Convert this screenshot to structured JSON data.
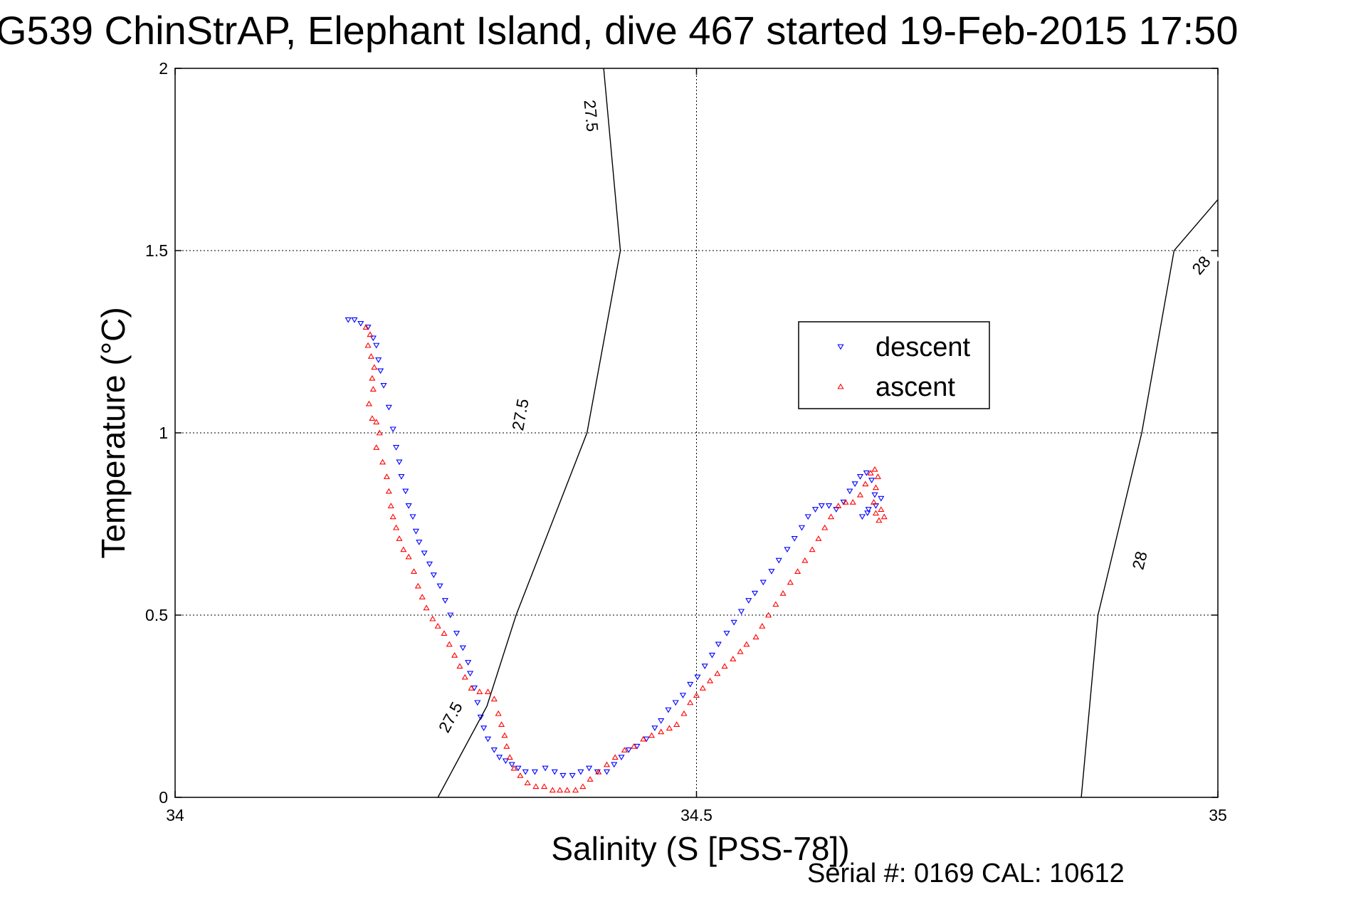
{
  "title": "G539 ChinStrAP, Elephant Island, dive 467 started 19-Feb-2015 17:50",
  "footer": "Serial #: 0169 CAL: 10612",
  "legend": {
    "entries": [
      {
        "name": "descent",
        "color": "#0000ff",
        "marker": "triangle-down"
      },
      {
        "name": "ascent",
        "color": "#ff0000",
        "marker": "triangle-up"
      }
    ],
    "position": "upper-right interior"
  },
  "chart_data": {
    "type": "scatter",
    "title": "G539 ChinStrAP, Elephant Island, dive 467 started 19-Feb-2015 17:50",
    "xlabel": "Salinity (S [PSS-78])",
    "ylabel": "Temperature (°C)",
    "xlim": [
      34,
      35
    ],
    "ylim": [
      0,
      2
    ],
    "xticks": [
      34,
      34.5,
      35
    ],
    "xtick_labels": [
      "34",
      "34.5",
      "35"
    ],
    "yticks": [
      0,
      0.5,
      1,
      1.5,
      2
    ],
    "ytick_labels": [
      "0",
      "0.5",
      "1",
      "1.5",
      "2"
    ],
    "grid": true,
    "legend_position": "upper-right interior",
    "density_contours": [
      {
        "value": "27.5",
        "points": [
          [
            34.252,
            0.0
          ],
          [
            34.299,
            0.25
          ],
          [
            34.327,
            0.5
          ],
          [
            34.395,
            1.0
          ],
          [
            34.427,
            1.5
          ],
          [
            34.411,
            2.0
          ]
        ],
        "labels": [
          [
            34.264,
            0.22
          ],
          [
            34.331,
            1.05
          ],
          [
            34.399,
            1.87
          ]
        ]
      },
      {
        "value": "28",
        "points": [
          [
            34.869,
            0.0
          ],
          [
            34.885,
            0.5
          ],
          [
            34.927,
            1.0
          ],
          [
            34.958,
            1.5
          ],
          [
            35.0,
            1.64
          ]
        ],
        "labels": [
          [
            34.925,
            0.65
          ],
          [
            34.984,
            1.46
          ]
        ]
      }
    ],
    "series": [
      {
        "name": "descent",
        "color": "#0000ff",
        "marker": "triangle-down",
        "points": [
          [
            34.166,
            1.31
          ],
          [
            34.172,
            1.31
          ],
          [
            34.178,
            1.3
          ],
          [
            34.185,
            1.29
          ],
          [
            34.19,
            1.26
          ],
          [
            34.193,
            1.24
          ],
          [
            34.195,
            1.2
          ],
          [
            34.197,
            1.17
          ],
          [
            34.2,
            1.13
          ],
          [
            34.205,
            1.07
          ],
          [
            34.209,
            1.01
          ],
          [
            34.212,
            0.96
          ],
          [
            34.215,
            0.92
          ],
          [
            34.217,
            0.88
          ],
          [
            34.221,
            0.84
          ],
          [
            34.224,
            0.8
          ],
          [
            34.228,
            0.77
          ],
          [
            34.231,
            0.73
          ],
          [
            34.234,
            0.7
          ],
          [
            34.239,
            0.67
          ],
          [
            34.244,
            0.64
          ],
          [
            34.248,
            0.61
          ],
          [
            34.254,
            0.58
          ],
          [
            34.259,
            0.54
          ],
          [
            34.264,
            0.5
          ],
          [
            34.27,
            0.45
          ],
          [
            34.276,
            0.41
          ],
          [
            34.281,
            0.37
          ],
          [
            34.283,
            0.34
          ],
          [
            34.287,
            0.3
          ],
          [
            34.29,
            0.26
          ],
          [
            34.293,
            0.22
          ],
          [
            34.296,
            0.19
          ],
          [
            34.3,
            0.16
          ],
          [
            34.306,
            0.13
          ],
          [
            34.311,
            0.11
          ],
          [
            34.317,
            0.1
          ],
          [
            34.323,
            0.09
          ],
          [
            34.329,
            0.08
          ],
          [
            34.336,
            0.07
          ],
          [
            34.345,
            0.07
          ],
          [
            34.355,
            0.08
          ],
          [
            34.364,
            0.07
          ],
          [
            34.372,
            0.06
          ],
          [
            34.381,
            0.06
          ],
          [
            34.389,
            0.07
          ],
          [
            34.397,
            0.08
          ],
          [
            34.405,
            0.07
          ],
          [
            34.414,
            0.07
          ],
          [
            34.421,
            0.09
          ],
          [
            34.428,
            0.11
          ],
          [
            34.435,
            0.13
          ],
          [
            34.443,
            0.14
          ],
          [
            34.452,
            0.16
          ],
          [
            34.46,
            0.19
          ],
          [
            34.466,
            0.21
          ],
          [
            34.473,
            0.24
          ],
          [
            34.48,
            0.26
          ],
          [
            34.487,
            0.28
          ],
          [
            34.494,
            0.31
          ],
          [
            34.501,
            0.33
          ],
          [
            34.508,
            0.36
          ],
          [
            34.515,
            0.39
          ],
          [
            34.521,
            0.42
          ],
          [
            34.529,
            0.45
          ],
          [
            34.536,
            0.48
          ],
          [
            34.543,
            0.51
          ],
          [
            34.55,
            0.54
          ],
          [
            34.556,
            0.56
          ],
          [
            34.564,
            0.59
          ],
          [
            34.572,
            0.62
          ],
          [
            34.579,
            0.65
          ],
          [
            34.587,
            0.68
          ],
          [
            34.594,
            0.71
          ],
          [
            34.601,
            0.74
          ],
          [
            34.607,
            0.77
          ],
          [
            34.614,
            0.79
          ],
          [
            34.62,
            0.8
          ],
          [
            34.627,
            0.8
          ],
          [
            34.634,
            0.79
          ],
          [
            34.641,
            0.81
          ],
          [
            34.647,
            0.84
          ],
          [
            34.652,
            0.86
          ],
          [
            34.657,
            0.88
          ],
          [
            34.663,
            0.89
          ],
          [
            34.668,
            0.87
          ],
          [
            34.671,
            0.83
          ],
          [
            34.665,
            0.79
          ],
          [
            34.659,
            0.77
          ],
          [
            34.664,
            0.78
          ],
          [
            34.672,
            0.8
          ],
          [
            34.677,
            0.82
          ]
        ]
      },
      {
        "name": "ascent",
        "color": "#ff0000",
        "marker": "triangle-up",
        "points": [
          [
            34.183,
            1.29
          ],
          [
            34.187,
            1.27
          ],
          [
            34.185,
            1.24
          ],
          [
            34.188,
            1.21
          ],
          [
            34.191,
            1.18
          ],
          [
            34.189,
            1.15
          ],
          [
            34.19,
            1.12
          ],
          [
            34.186,
            1.08
          ],
          [
            34.189,
            1.04
          ],
          [
            34.193,
            1.03
          ],
          [
            34.196,
            1.0
          ],
          [
            34.193,
            0.96
          ],
          [
            34.199,
            0.92
          ],
          [
            34.203,
            0.88
          ],
          [
            34.205,
            0.84
          ],
          [
            34.207,
            0.8
          ],
          [
            34.209,
            0.77
          ],
          [
            34.212,
            0.74
          ],
          [
            34.215,
            0.71
          ],
          [
            34.219,
            0.68
          ],
          [
            34.224,
            0.66
          ],
          [
            34.229,
            0.62
          ],
          [
            34.233,
            0.58
          ],
          [
            34.237,
            0.55
          ],
          [
            34.241,
            0.52
          ],
          [
            34.247,
            0.49
          ],
          [
            34.252,
            0.47
          ],
          [
            34.258,
            0.45
          ],
          [
            34.263,
            0.42
          ],
          [
            34.268,
            0.39
          ],
          [
            34.273,
            0.36
          ],
          [
            34.278,
            0.33
          ],
          [
            34.284,
            0.3
          ],
          [
            34.292,
            0.29
          ],
          [
            34.3,
            0.29
          ],
          [
            34.306,
            0.27
          ],
          [
            34.31,
            0.23
          ],
          [
            34.313,
            0.2
          ],
          [
            34.316,
            0.17
          ],
          [
            34.318,
            0.14
          ],
          [
            34.321,
            0.11
          ],
          [
            34.325,
            0.08
          ],
          [
            34.331,
            0.06
          ],
          [
            34.338,
            0.04
          ],
          [
            34.346,
            0.03
          ],
          [
            34.354,
            0.03
          ],
          [
            34.362,
            0.02
          ],
          [
            34.369,
            0.02
          ],
          [
            34.376,
            0.02
          ],
          [
            34.384,
            0.02
          ],
          [
            34.391,
            0.03
          ],
          [
            34.398,
            0.05
          ],
          [
            34.406,
            0.07
          ],
          [
            34.414,
            0.09
          ],
          [
            34.422,
            0.11
          ],
          [
            34.431,
            0.13
          ],
          [
            34.44,
            0.14
          ],
          [
            34.449,
            0.16
          ],
          [
            34.457,
            0.17
          ],
          [
            34.466,
            0.18
          ],
          [
            34.474,
            0.19
          ],
          [
            34.481,
            0.2
          ],
          [
            34.488,
            0.23
          ],
          [
            34.494,
            0.26
          ],
          [
            34.5,
            0.28
          ],
          [
            34.506,
            0.3
          ],
          [
            34.513,
            0.32
          ],
          [
            34.52,
            0.34
          ],
          [
            34.527,
            0.36
          ],
          [
            34.535,
            0.38
          ],
          [
            34.542,
            0.4
          ],
          [
            34.548,
            0.42
          ],
          [
            34.557,
            0.44
          ],
          [
            34.563,
            0.47
          ],
          [
            34.569,
            0.5
          ],
          [
            34.576,
            0.53
          ],
          [
            34.583,
            0.56
          ],
          [
            34.59,
            0.59
          ],
          [
            34.597,
            0.62
          ],
          [
            34.604,
            0.65
          ],
          [
            34.611,
            0.68
          ],
          [
            34.617,
            0.71
          ],
          [
            34.623,
            0.74
          ],
          [
            34.629,
            0.77
          ],
          [
            34.636,
            0.8
          ],
          [
            34.643,
            0.81
          ],
          [
            34.65,
            0.81
          ],
          [
            34.657,
            0.83
          ],
          [
            34.662,
            0.86
          ],
          [
            34.667,
            0.89
          ],
          [
            34.671,
            0.9
          ],
          [
            34.674,
            0.88
          ],
          [
            34.672,
            0.85
          ],
          [
            34.67,
            0.81
          ],
          [
            34.672,
            0.78
          ],
          [
            34.675,
            0.76
          ],
          [
            34.68,
            0.77
          ],
          [
            34.677,
            0.79
          ]
        ]
      }
    ]
  }
}
